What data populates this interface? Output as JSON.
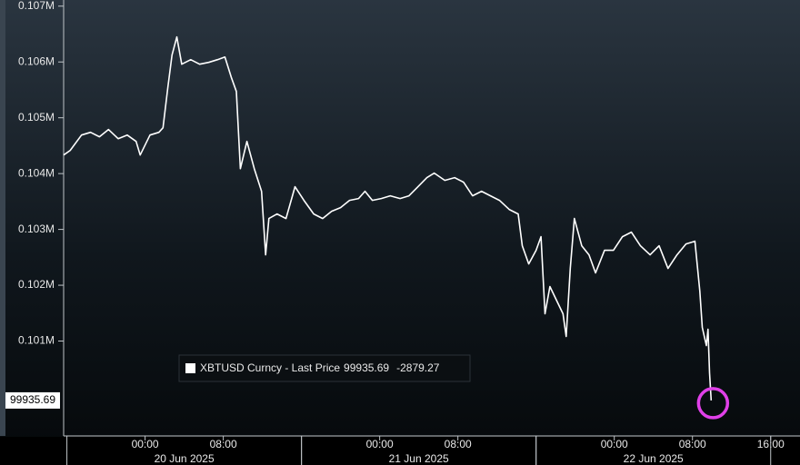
{
  "chart_data": {
    "type": "line",
    "series": [
      {
        "name": "XBTUSD Curncy - Last Price",
        "color": "#ffffff",
        "values": [
          104333,
          104415,
          104691,
          104740,
          104659,
          104789,
          104626,
          104691,
          104577,
          104333,
          104691,
          104740,
          104821,
          105553,
          106122,
          106447,
          105959,
          106041,
          105959,
          105992,
          106041,
          106089,
          105715,
          105472,
          104089,
          104577,
          104089,
          103683,
          102545,
          103195,
          103276,
          103195,
          103764,
          103520,
          103276,
          103195,
          103325,
          103390,
          103520,
          103553,
          103683,
          103520,
          103553,
          103602,
          103553,
          103602,
          103764,
          103927,
          104008,
          103878,
          103927,
          103846,
          103602,
          103683,
          103602,
          103520,
          103358,
          103276,
          102707,
          102382,
          102626,
          102870,
          101488,
          101976,
          101732,
          101488,
          101081,
          102301,
          103195,
          102707,
          102545,
          102220,
          102626,
          102626,
          102870,
          102951,
          102707,
          102545,
          102707,
          102301,
          102545,
          102740,
          102789,
          101894,
          101244,
          100919,
          101211,
          100431,
          99935.69
        ]
      }
    ],
    "x": [
      "2025-06-19T15:40",
      "2025-06-19T16:20",
      "2025-06-19T17:30",
      "2025-06-19T18:25",
      "2025-06-19T19:20",
      "2025-06-19T20:15",
      "2025-06-19T21:15",
      "2025-06-19T22:10",
      "2025-06-19T23:05",
      "2025-06-19T23:30",
      "2025-06-20T00:30",
      "2025-06-20T01:25",
      "2025-06-20T01:50",
      "2025-06-20T02:20",
      "2025-06-20T02:45",
      "2025-06-20T03:15",
      "2025-06-20T03:45",
      "2025-06-20T04:40",
      "2025-06-20T05:35",
      "2025-06-20T06:30",
      "2025-06-20T07:25",
      "2025-06-20T08:10",
      "2025-06-20T08:50",
      "2025-06-20T09:20",
      "2025-06-20T09:45",
      "2025-06-20T10:25",
      "2025-06-20T11:10",
      "2025-06-20T11:55",
      "2025-06-20T12:20",
      "2025-06-20T12:40",
      "2025-06-20T13:30",
      "2025-06-20T14:25",
      "2025-06-20T15:20",
      "2025-06-20T16:15",
      "2025-06-20T17:15",
      "2025-06-20T18:10",
      "2025-06-20T19:05",
      "2025-06-20T20:00",
      "2025-06-20T20:55",
      "2025-06-20T21:50",
      "2025-06-20T22:30",
      "2025-06-20T23:15",
      "2025-06-21T00:10",
      "2025-06-21T01:05",
      "2025-06-21T02:05",
      "2025-06-21T03:00",
      "2025-06-21T03:55",
      "2025-06-21T04:50",
      "2025-06-21T05:35",
      "2025-06-21T06:40",
      "2025-06-21T07:40",
      "2025-06-21T08:35",
      "2025-06-21T09:30",
      "2025-06-21T10:25",
      "2025-06-21T11:20",
      "2025-06-21T12:15",
      "2025-06-21T13:15",
      "2025-06-21T14:10",
      "2025-06-21T14:35",
      "2025-06-21T15:15",
      "2025-06-21T16:00",
      "2025-06-21T16:30",
      "2025-06-21T16:55",
      "2025-06-21T17:25",
      "2025-06-21T18:05",
      "2025-06-21T18:45",
      "2025-06-21T19:05",
      "2025-06-21T19:30",
      "2025-06-21T19:55",
      "2025-06-21T20:40",
      "2025-06-21T21:25",
      "2025-06-21T22:05",
      "2025-06-21T23:00",
      "2025-06-21T23:55",
      "2025-06-22T00:50",
      "2025-06-22T01:45",
      "2025-06-22T02:40",
      "2025-06-22T03:40",
      "2025-06-22T04:35",
      "2025-06-22T05:30",
      "2025-06-22T06:25",
      "2025-06-22T07:20",
      "2025-06-22T08:15",
      "2025-06-22T08:45",
      "2025-06-22T09:00",
      "2025-06-22T09:25",
      "2025-06-22T09:35",
      "2025-06-22T09:45",
      "2025-06-22T09:55"
    ],
    "xlim": [
      "2025-06-19T15:40",
      "2025-06-22T19:00"
    ],
    "ylim": [
      99300,
      107110
    ],
    "yticks": [
      {
        "value": 101000,
        "label": "0.101M"
      },
      {
        "value": 102000,
        "label": "0.102M"
      },
      {
        "value": 103000,
        "label": "0.103M"
      },
      {
        "value": 104000,
        "label": "0.104M"
      },
      {
        "value": 105000,
        "label": "0.105M"
      },
      {
        "value": 106000,
        "label": "0.106M"
      },
      {
        "value": 107000,
        "label": "0.107M"
      }
    ],
    "xticks": [
      {
        "value": "2025-06-20T00:00",
        "label": "00:00"
      },
      {
        "value": "2025-06-20T08:00",
        "label": "08:00"
      },
      {
        "value": "2025-06-21T00:00",
        "label": "00:00"
      },
      {
        "value": "2025-06-21T08:00",
        "label": "08:00"
      },
      {
        "value": "2025-06-22T00:00",
        "label": "00:00"
      },
      {
        "value": "2025-06-22T08:00",
        "label": "08:00"
      },
      {
        "value": "2025-06-22T16:00",
        "label": "16:00"
      }
    ],
    "date_labels": [
      {
        "value": "2025-06-20T04:00",
        "label": "20 Jun 2025"
      },
      {
        "value": "2025-06-21T04:00",
        "label": "21 Jun 2025"
      },
      {
        "value": "2025-06-22T04:00",
        "label": "22 Jun 2025"
      }
    ],
    "last_price": {
      "value": 99935.69,
      "label": "99935.69"
    },
    "change": {
      "value": -2879.27,
      "label": "-2879.27"
    }
  }
}
